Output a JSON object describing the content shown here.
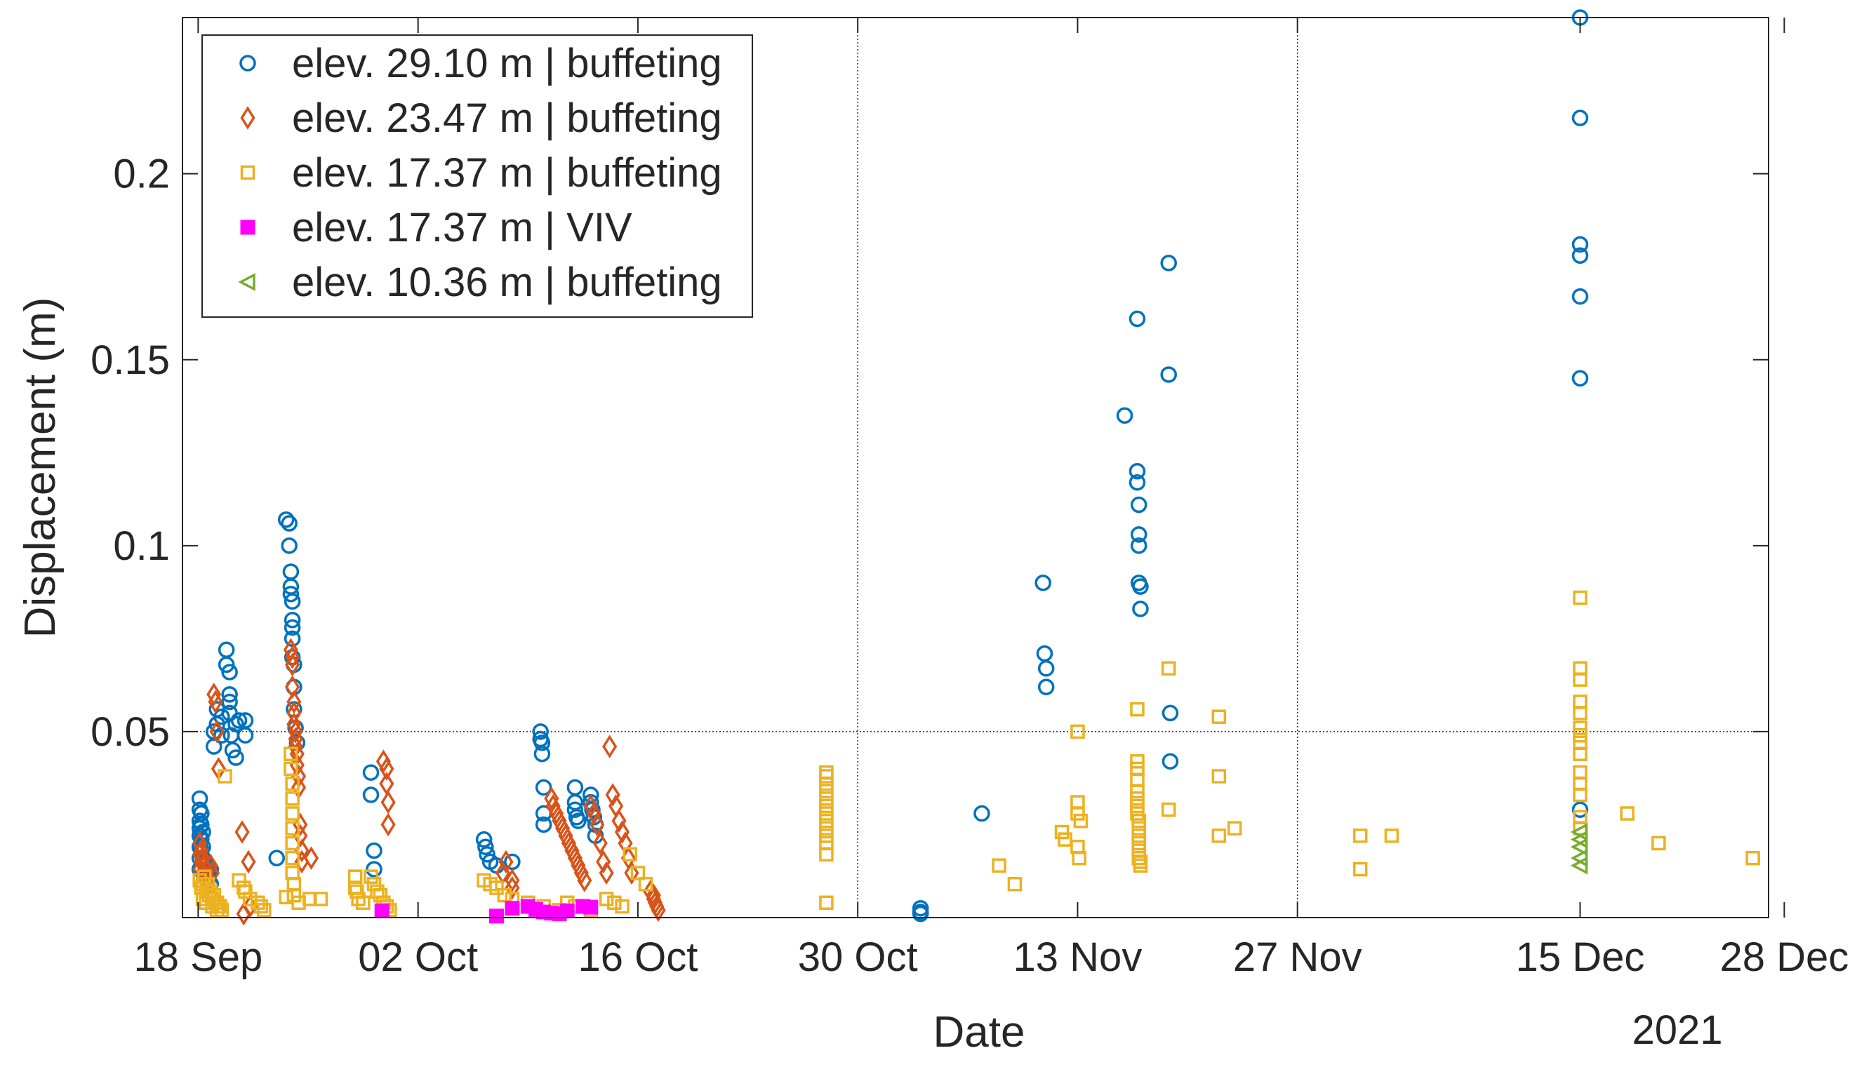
{
  "chart_data": {
    "type": "scatter",
    "xlabel": "Date",
    "ylabel": "Displacement (m)",
    "x_secondary_label": "2021",
    "xlim_days": [
      -1,
      100
    ],
    "ylim": [
      0,
      0.242
    ],
    "x_ticks": [
      {
        "day": 0,
        "label": "18 Sep"
      },
      {
        "day": 14,
        "label": "02 Oct"
      },
      {
        "day": 28,
        "label": "16 Oct"
      },
      {
        "day": 42,
        "label": "30 Oct"
      },
      {
        "day": 56,
        "label": "13 Nov"
      },
      {
        "day": 70,
        "label": "27 Nov"
      },
      {
        "day": 88,
        "label": "15 Dec"
      },
      {
        "day": 101,
        "label": "28 Dec"
      }
    ],
    "y_ticks": [
      {
        "value": 0.05,
        "label": "0.05"
      },
      {
        "value": 0.1,
        "label": "0.1"
      },
      {
        "value": 0.15,
        "label": "0.15"
      },
      {
        "value": 0.2,
        "label": "0.2"
      }
    ],
    "reference_lines": {
      "vertical_days": [
        42,
        70
      ],
      "horizontal_values": [
        0.05
      ]
    },
    "legend_position": "top-left",
    "series": [
      {
        "name": "elev. 29.10 m | buffeting",
        "marker": "circle",
        "color": "#0072BD",
        "x": [
          0.1,
          0.1,
          0.1,
          0.1,
          0.1,
          0.1,
          0.1,
          0.1,
          0.2,
          0.2,
          0.2,
          0.2,
          0.3,
          0.3,
          0.3,
          0.4,
          0.4,
          0.5,
          0.5,
          0.6,
          0.6,
          0.8,
          0.8,
          1.0,
          1.0,
          1.2,
          1.2,
          1.5,
          1.5,
          1.8,
          1.8,
          2.0,
          2.0,
          2.0,
          2.0,
          2.1,
          2.2,
          2.4,
          2.4,
          2.6,
          3.0,
          3.0,
          5.0,
          5.6,
          5.8,
          5.8,
          5.9,
          5.9,
          5.9,
          6.0,
          6.0,
          6.0,
          6.0,
          6.0,
          6.1,
          6.1,
          6.1,
          6.2,
          6.3,
          11.0,
          11.0,
          11.2,
          11.2,
          18.2,
          18.3,
          18.4,
          18.6,
          19.0,
          20.0,
          21.8,
          21.8,
          21.9,
          21.9,
          22.0,
          22.0,
          22.0,
          24.0,
          24.0,
          24.0,
          24.1,
          24.2,
          25.0,
          25.0,
          25.1,
          25.2,
          25.3,
          25.3,
          46.0,
          46.0,
          46.0,
          49.9,
          53.8,
          53.9,
          54.0,
          54.0,
          59.0,
          59.8,
          59.8,
          59.8,
          59.9,
          59.9,
          59.9,
          59.9,
          60.0,
          60.0,
          61.8,
          61.8,
          61.9,
          61.9,
          88.0,
          88.0,
          88.0,
          88.0,
          88.0,
          88.0,
          88.0
        ],
        "y": [
          0.032,
          0.029,
          0.026,
          0.024,
          0.022,
          0.019,
          0.016,
          0.013,
          0.028,
          0.025,
          0.021,
          0.018,
          0.023,
          0.019,
          0.016,
          0.015,
          0.012,
          0.014,
          0.011,
          0.012,
          0.01,
          0.013,
          0.009,
          0.05,
          0.046,
          0.056,
          0.052,
          0.054,
          0.049,
          0.072,
          0.068,
          0.066,
          0.06,
          0.058,
          0.055,
          0.049,
          0.045,
          0.052,
          0.043,
          0.053,
          0.053,
          0.049,
          0.016,
          0.107,
          0.106,
          0.1,
          0.093,
          0.089,
          0.087,
          0.085,
          0.08,
          0.078,
          0.075,
          0.07,
          0.068,
          0.062,
          0.056,
          0.051,
          0.047,
          0.039,
          0.033,
          0.018,
          0.013,
          0.021,
          0.019,
          0.017,
          0.015,
          0.014,
          0.015,
          0.05,
          0.048,
          0.047,
          0.044,
          0.035,
          0.028,
          0.025,
          0.035,
          0.031,
          0.029,
          0.027,
          0.026,
          0.033,
          0.031,
          0.029,
          0.027,
          0.025,
          0.022,
          0.0025,
          0.0015,
          0.001,
          0.028,
          0.09,
          0.071,
          0.062,
          0.067,
          0.135,
          0.161,
          0.12,
          0.117,
          0.111,
          0.103,
          0.1,
          0.09,
          0.089,
          0.083,
          0.176,
          0.146,
          0.055,
          0.042,
          0.242,
          0.215,
          0.181,
          0.178,
          0.167,
          0.145,
          0.029
        ]
      },
      {
        "name": "elev. 23.47 m | buffeting",
        "marker": "diamond",
        "color": "#D95319",
        "x": [
          0.1,
          0.1,
          0.1,
          0.2,
          0.2,
          0.3,
          0.3,
          0.4,
          0.5,
          0.5,
          0.6,
          0.8,
          0.9,
          1.0,
          1.1,
          1.2,
          1.3,
          2.8,
          2.9,
          3.2,
          3.3,
          5.9,
          6.0,
          6.0,
          6.0,
          6.1,
          6.1,
          6.1,
          6.2,
          6.2,
          6.2,
          6.3,
          6.3,
          6.4,
          6.4,
          6.5,
          6.5,
          6.6,
          6.6,
          7.2,
          11.8,
          12.0,
          12.0,
          12.1,
          12.1,
          19.4,
          19.6,
          20.0,
          20.0,
          22.5,
          22.6,
          22.8,
          23.0,
          23.2,
          23.4,
          23.6,
          23.8,
          24.0,
          24.2,
          24.4,
          24.6,
          25.0,
          25.2,
          25.4,
          25.6,
          25.8,
          26.0,
          26.2,
          26.4,
          26.6,
          26.8,
          27.0,
          27.2,
          27.4,
          27.6,
          28.8,
          29.0,
          29.0,
          29.1,
          29.2,
          29.3
        ],
        "y": [
          0.02,
          0.017,
          0.013,
          0.018,
          0.015,
          0.016,
          0.012,
          0.014,
          0.013,
          0.01,
          0.011,
          0.014,
          0.012,
          0.06,
          0.058,
          0.05,
          0.04,
          0.023,
          0.001,
          0.015,
          0.003,
          0.072,
          0.07,
          0.068,
          0.062,
          0.058,
          0.055,
          0.052,
          0.05,
          0.048,
          0.046,
          0.044,
          0.041,
          0.038,
          0.035,
          0.025,
          0.022,
          0.018,
          0.015,
          0.016,
          0.042,
          0.04,
          0.036,
          0.031,
          0.025,
          0.012,
          0.015,
          0.01,
          0.008,
          0.032,
          0.03,
          0.028,
          0.026,
          0.024,
          0.022,
          0.02,
          0.018,
          0.016,
          0.014,
          0.012,
          0.01,
          0.03,
          0.028,
          0.025,
          0.02,
          0.015,
          0.012,
          0.046,
          0.033,
          0.03,
          0.026,
          0.023,
          0.02,
          0.016,
          0.012,
          0.007,
          0.006,
          0.005,
          0.004,
          0.003,
          0.002
        ]
      },
      {
        "name": "elev. 17.37 m | buffeting",
        "marker": "square",
        "color": "#EDB120",
        "x": [
          0.1,
          0.2,
          0.3,
          0.5,
          0.7,
          0.9,
          1.1,
          1.3,
          1.5,
          0.4,
          0.6,
          0.8,
          1.0,
          1.2,
          1.4,
          0.3,
          0.5,
          0.9,
          1.2,
          1.7,
          2.6,
          2.9,
          3.0,
          3.3,
          3.8,
          4.0,
          4.2,
          5.6,
          5.9,
          5.9,
          6.0,
          6.0,
          6.0,
          6.0,
          6.0,
          6.0,
          6.0,
          6.1,
          6.1,
          6.4,
          7.1,
          7.8,
          10.0,
          10.0,
          10.1,
          10.2,
          10.5,
          11.0,
          11.2,
          11.4,
          11.6,
          11.8,
          12.0,
          12.2,
          18.2,
          18.6,
          19.0,
          19.5,
          20.0,
          21.0,
          22.0,
          23.0,
          23.5,
          24.0,
          25.0,
          26.0,
          26.5,
          27.0,
          27.5,
          28.0,
          28.5,
          40.0,
          40.0,
          40.0,
          40.0,
          40.0,
          40.0,
          40.0,
          40.0,
          40.0,
          40.0,
          40.0,
          40.0,
          40.0,
          51.0,
          52.0,
          55.0,
          55.2,
          56.0,
          56.0,
          56.0,
          56.0,
          56.1,
          56.2,
          59.8,
          59.8,
          59.8,
          59.8,
          59.8,
          59.8,
          59.8,
          59.8,
          59.9,
          59.9,
          59.9,
          59.9,
          59.9,
          59.9,
          60.0,
          60.0,
          61.8,
          61.8,
          65.0,
          65.0,
          65.0,
          66.0,
          74.0,
          74.0,
          76.0,
          88.0,
          88.0,
          88.0,
          88.0,
          88.0,
          88.0,
          88.0,
          88.0,
          88.0,
          88.0,
          88.0,
          88.0,
          88.0,
          88.0,
          91.0,
          93.0,
          99.0
        ],
        "y": [
          0.01,
          0.008,
          0.009,
          0.007,
          0.006,
          0.005,
          0.004,
          0.003,
          0.002,
          0.011,
          0.009,
          0.007,
          0.006,
          0.004,
          0.003,
          0.005,
          0.004,
          0.003,
          0.002,
          0.038,
          0.01,
          0.008,
          0.007,
          0.005,
          0.004,
          0.003,
          0.002,
          0.0055,
          0.044,
          0.04,
          0.036,
          0.032,
          0.028,
          0.024,
          0.02,
          0.016,
          0.012,
          0.009,
          0.006,
          0.004,
          0.005,
          0.005,
          0.011,
          0.008,
          0.007,
          0.005,
          0.004,
          0.011,
          0.009,
          0.007,
          0.006,
          0.004,
          0.003,
          0.002,
          0.01,
          0.009,
          0.008,
          0.006,
          0.005,
          0.004,
          0.003,
          0.002,
          0.004,
          0.003,
          0.002,
          0.005,
          0.004,
          0.003,
          0.017,
          0.012,
          0.009,
          0.004,
          0.039,
          0.038,
          0.036,
          0.034,
          0.032,
          0.03,
          0.028,
          0.026,
          0.024,
          0.022,
          0.02,
          0.017,
          0.014,
          0.009,
          0.023,
          0.021,
          0.05,
          0.031,
          0.028,
          0.019,
          0.016,
          0.026,
          0.056,
          0.042,
          0.04,
          0.037,
          0.034,
          0.032,
          0.03,
          0.028,
          0.026,
          0.024,
          0.022,
          0.02,
          0.018,
          0.016,
          0.015,
          0.014,
          0.067,
          0.029,
          0.054,
          0.038,
          0.022,
          0.024,
          0.022,
          0.013,
          0.022,
          0.086,
          0.067,
          0.064,
          0.058,
          0.055,
          0.051,
          0.049,
          0.047,
          0.044,
          0.039,
          0.036,
          0.033,
          0.027,
          0.024,
          0.028,
          0.02,
          0.016
        ]
      },
      {
        "name": "elev. 17.37 m | VIV",
        "marker": "filled-square",
        "color": "#FF00FF",
        "x": [
          11.7,
          19.0,
          20.0,
          21.0,
          21.5,
          22.0,
          22.5,
          23.0,
          23.5,
          24.5,
          25.0
        ],
        "y": [
          0.0018,
          0.0004,
          0.0025,
          0.003,
          0.0022,
          0.0015,
          0.0012,
          0.001,
          0.0018,
          0.003,
          0.0028
        ]
      },
      {
        "name": "elev. 10.36 m | buffeting",
        "marker": "triangle-left",
        "color": "#77AC30",
        "x": [
          88.0,
          88.0,
          88.0,
          88.0,
          88.0
        ],
        "y": [
          0.023,
          0.021,
          0.019,
          0.016,
          0.014
        ]
      }
    ]
  }
}
